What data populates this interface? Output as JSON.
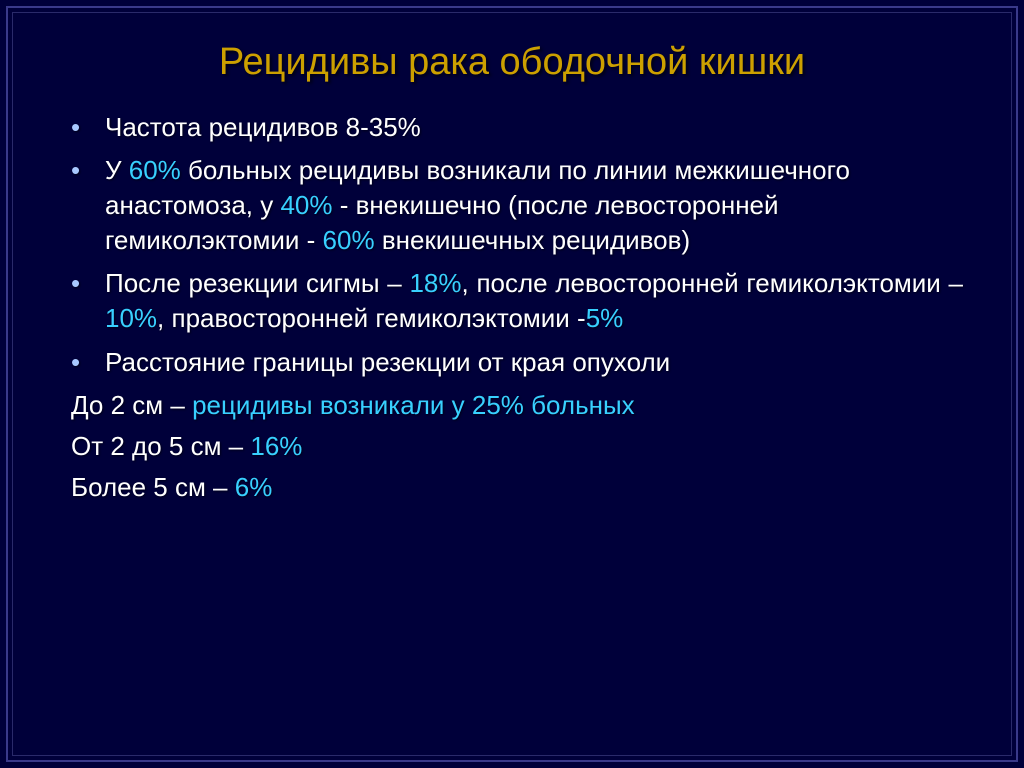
{
  "colors": {
    "background": "#00003a",
    "title": "#cca000",
    "body_text": "#ffffff",
    "highlight": "#38d0ff",
    "bullet": "#a8c8ff",
    "frame_outer": "#3a3a8a",
    "frame_inner": "#2a2a6a"
  },
  "typography": {
    "title_fontsize": 38,
    "body_fontsize": 26,
    "font_family": "Arial"
  },
  "title": "Рецидивы рака ободочной кишки",
  "bullets": [
    {
      "segments": [
        {
          "text": "Частота рецидивов 8-35%",
          "c": "body_text"
        }
      ],
      "justify": false
    },
    {
      "segments": [
        {
          "text": "У ",
          "c": "body_text"
        },
        {
          "text": "60%",
          "c": "highlight"
        },
        {
          "text": " больных рецидивы возникали по линии межкишечного анастомоза, у ",
          "c": "body_text"
        },
        {
          "text": "40%",
          "c": "highlight"
        },
        {
          "text": " - внекишечно (после левосторонней гемиколэктомии - ",
          "c": "body_text"
        },
        {
          "text": "60%",
          "c": "highlight"
        },
        {
          "text": " внекишечных рецидивов)",
          "c": "body_text"
        }
      ],
      "justify": false
    },
    {
      "segments": [
        {
          "text": "После резекции сигмы – ",
          "c": "body_text"
        },
        {
          "text": "18%",
          "c": "highlight"
        },
        {
          "text": ", после левосторонней гемиколэктомии – ",
          "c": "body_text"
        },
        {
          "text": "10%",
          "c": "highlight"
        },
        {
          "text": ", правосторонней гемиколэктомии -",
          "c": "body_text"
        },
        {
          "text": "5%",
          "c": "highlight"
        }
      ],
      "justify": true
    },
    {
      "segments": [
        {
          "text": "Расстояние границы резекции от края опухоли",
          "c": "body_text"
        }
      ],
      "justify": false
    }
  ],
  "plain_lines": [
    {
      "segments": [
        {
          "text": "До 2 см – ",
          "c": "body_text"
        },
        {
          "text": "рецидивы возникали у 25% больных",
          "c": "highlight"
        }
      ]
    },
    {
      "segments": [
        {
          "text": "От 2 до 5 см – ",
          "c": "body_text"
        },
        {
          "text": "16%",
          "c": "highlight"
        }
      ]
    },
    {
      "segments": [
        {
          "text": "Более 5 см – ",
          "c": "body_text"
        },
        {
          "text": "6%",
          "c": "highlight"
        }
      ]
    }
  ]
}
